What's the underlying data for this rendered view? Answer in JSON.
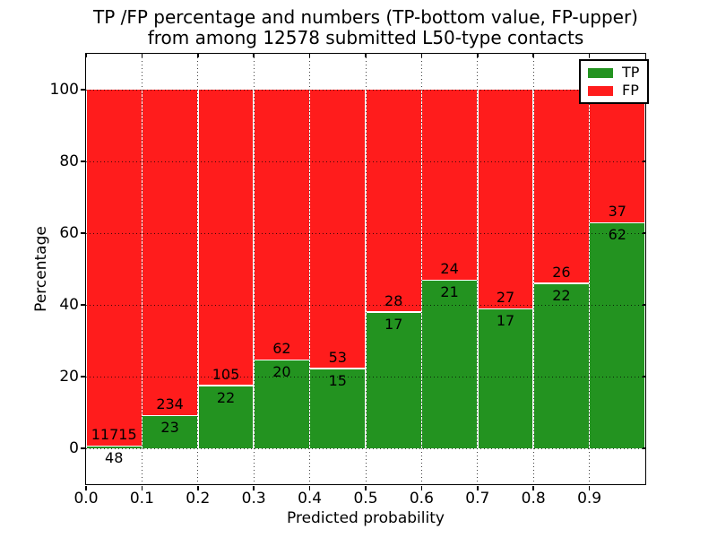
{
  "header": {
    "title_line1": "TP /FP percentage and numbers (TP-bottom value, FP-upper)",
    "title_line2": "from among 12578 submitted L50-type contacts"
  },
  "axes": {
    "xlabel": "Predicted probability",
    "ylabel": "Percentage"
  },
  "chart_data": {
    "type": "bar",
    "stacked": true,
    "normalized_to_100_percent": true,
    "title": "TP /FP percentage and numbers (TP-bottom value, FP-upper) from among 12578 submitted L50-type contacts",
    "xlabel": "Predicted probability",
    "ylabel": "Percentage",
    "total_submitted": 12578,
    "xlim": [
      0.0,
      1.0
    ],
    "ylim": [
      -10,
      110
    ],
    "x_tick_labels": [
      "0.0",
      "0.1",
      "0.2",
      "0.3",
      "0.4",
      "0.5",
      "0.6",
      "0.7",
      "0.8",
      "0.9"
    ],
    "y_tick_values": [
      0,
      20,
      40,
      60,
      80,
      100
    ],
    "y_tick_labels": [
      "0",
      "20",
      "40",
      "60",
      "80",
      "100"
    ],
    "bins_start": [
      0.0,
      0.1,
      0.2,
      0.3,
      0.4,
      0.5,
      0.6,
      0.7,
      0.8,
      0.9
    ],
    "bin_width": 0.1,
    "series": [
      {
        "name": "TP",
        "color": "#239320",
        "counts": [
          48,
          23,
          22,
          20,
          15,
          17,
          21,
          17,
          22,
          62
        ]
      },
      {
        "name": "FP",
        "color": "#ff1c1c",
        "counts": [
          11715,
          234,
          105,
          62,
          53,
          28,
          24,
          27,
          26,
          37
        ]
      }
    ],
    "tp_percent_of_bin": [
      0.41,
      8.95,
      17.32,
      24.39,
      22.06,
      37.78,
      46.67,
      38.64,
      45.83,
      62.63
    ],
    "grid": {
      "style": "dotted",
      "color": "#000000"
    },
    "legend": {
      "position": "upper right",
      "entries": [
        {
          "label": "TP",
          "color": "#239320"
        },
        {
          "label": "FP",
          "color": "#ff1c1c"
        }
      ]
    }
  }
}
